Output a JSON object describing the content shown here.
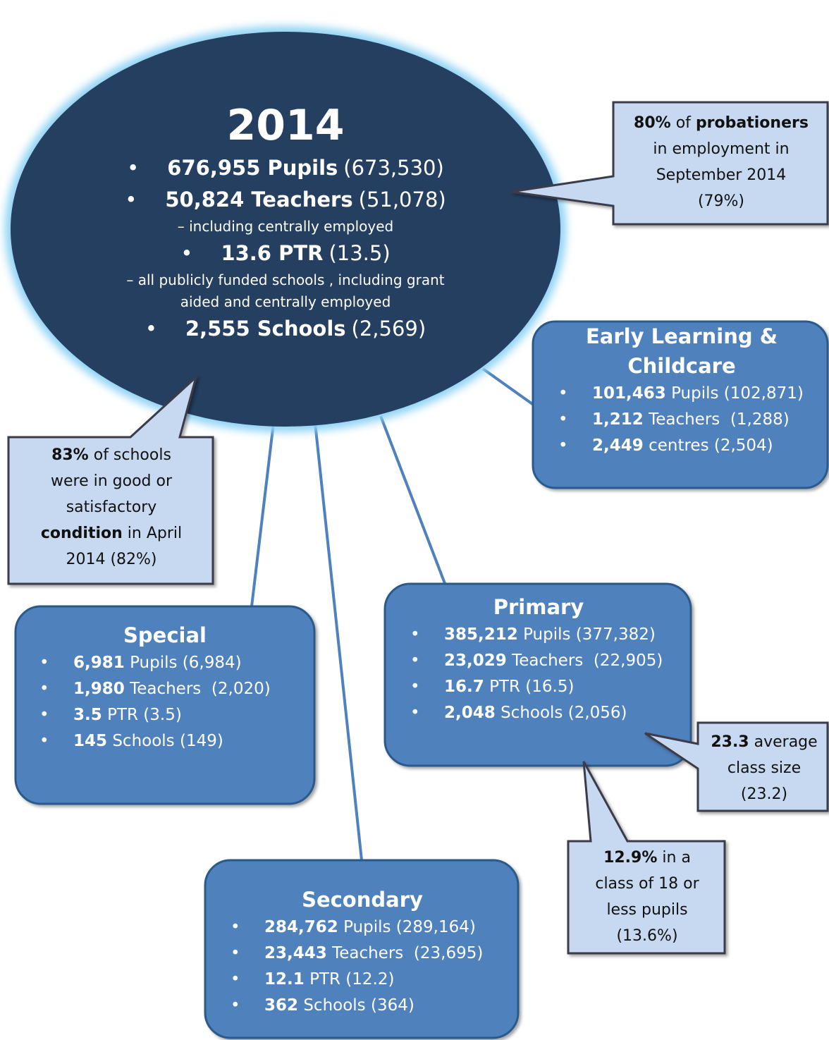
{
  "main": {
    "title": "2014",
    "pupils": {
      "figure": "676,955 Pupils",
      "previous": "(673,530)"
    },
    "teachers": {
      "figure": "50,824 Teachers",
      "previous": "(51,078)",
      "note": "– including centrally employed"
    },
    "ptr": {
      "figure": "13.6 PTR",
      "previous": "(13.5)",
      "note": [
        "– all publicly funded schools , including grant",
        "aided and centrally employed"
      ]
    },
    "schools": {
      "figure": "2,555 Schools",
      "previous": "(2,569)"
    }
  },
  "sectors": [
    {
      "title": "Early Learning & Childcare",
      "items": [
        {
          "figure": "101,463",
          "label": "Pupils (102,871)"
        },
        {
          "figure": "1,212",
          "label": "Teachers  (1,288)"
        },
        {
          "figure": "2,449",
          "label": "centres (2,504)"
        }
      ]
    },
    {
      "title": "Special",
      "items": [
        {
          "figure": "6,981",
          "label": "Pupils (6,984)"
        },
        {
          "figure": "1,980",
          "label": "Teachers  (2,020)"
        },
        {
          "figure": "3.5",
          "label": "PTR (3.5)"
        },
        {
          "figure": "145",
          "label": "Schools (149)"
        }
      ]
    },
    {
      "title": "Primary",
      "items": [
        {
          "figure": "385,212",
          "label": "Pupils (377,382)"
        },
        {
          "figure": "23,029",
          "label": "Teachers  (22,905)"
        },
        {
          "figure": "16.7",
          "label": "PTR (16.5)"
        },
        {
          "figure": "2,048",
          "label": "Schools (2,056)"
        }
      ]
    },
    {
      "title": "Secondary",
      "items": [
        {
          "figure": "284,762",
          "label": "Pupils (289,164)"
        },
        {
          "figure": "23,443",
          "label": "Teachers  (23,695)"
        },
        {
          "figure": "12.1",
          "label": "PTR (12.2)"
        },
        {
          "figure": "362",
          "label": "Schools (364)"
        }
      ]
    }
  ],
  "callouts": [
    {
      "lines": [
        [
          {
            "text": "80%",
            "bold": true
          },
          {
            "text": "of"
          },
          {
            "text": "probationers",
            "bold": true
          }
        ],
        [
          {
            "text": "in employment in"
          }
        ],
        [
          {
            "text": "September 2014"
          }
        ],
        [
          {
            "text": "(79%)"
          }
        ]
      ]
    },
    {
      "lines": [
        [
          {
            "text": "83%",
            "bold": true
          },
          {
            "text": "of schools"
          }
        ],
        [
          {
            "text": "were in good or"
          }
        ],
        [
          {
            "text": "satisfactory"
          }
        ],
        [
          {
            "text": "condition",
            "bold": true
          },
          {
            "text": "in April"
          }
        ],
        [
          {
            "text": "2014 (82%)"
          }
        ]
      ]
    },
    {
      "lines": [
        [
          {
            "text": "23.3",
            "bold": true
          },
          {
            "text": "average"
          }
        ],
        [
          {
            "text": "class size"
          }
        ],
        [
          {
            "text": "(23.2)"
          }
        ]
      ]
    },
    {
      "lines": [
        [
          {
            "text": "12.9%",
            "bold": true
          },
          {
            "text": "in a"
          }
        ],
        [
          {
            "text": "class of 18 or"
          }
        ],
        [
          {
            "text": "less pupils"
          }
        ],
        [
          {
            "text": "(13.6%)"
          }
        ]
      ]
    }
  ]
}
